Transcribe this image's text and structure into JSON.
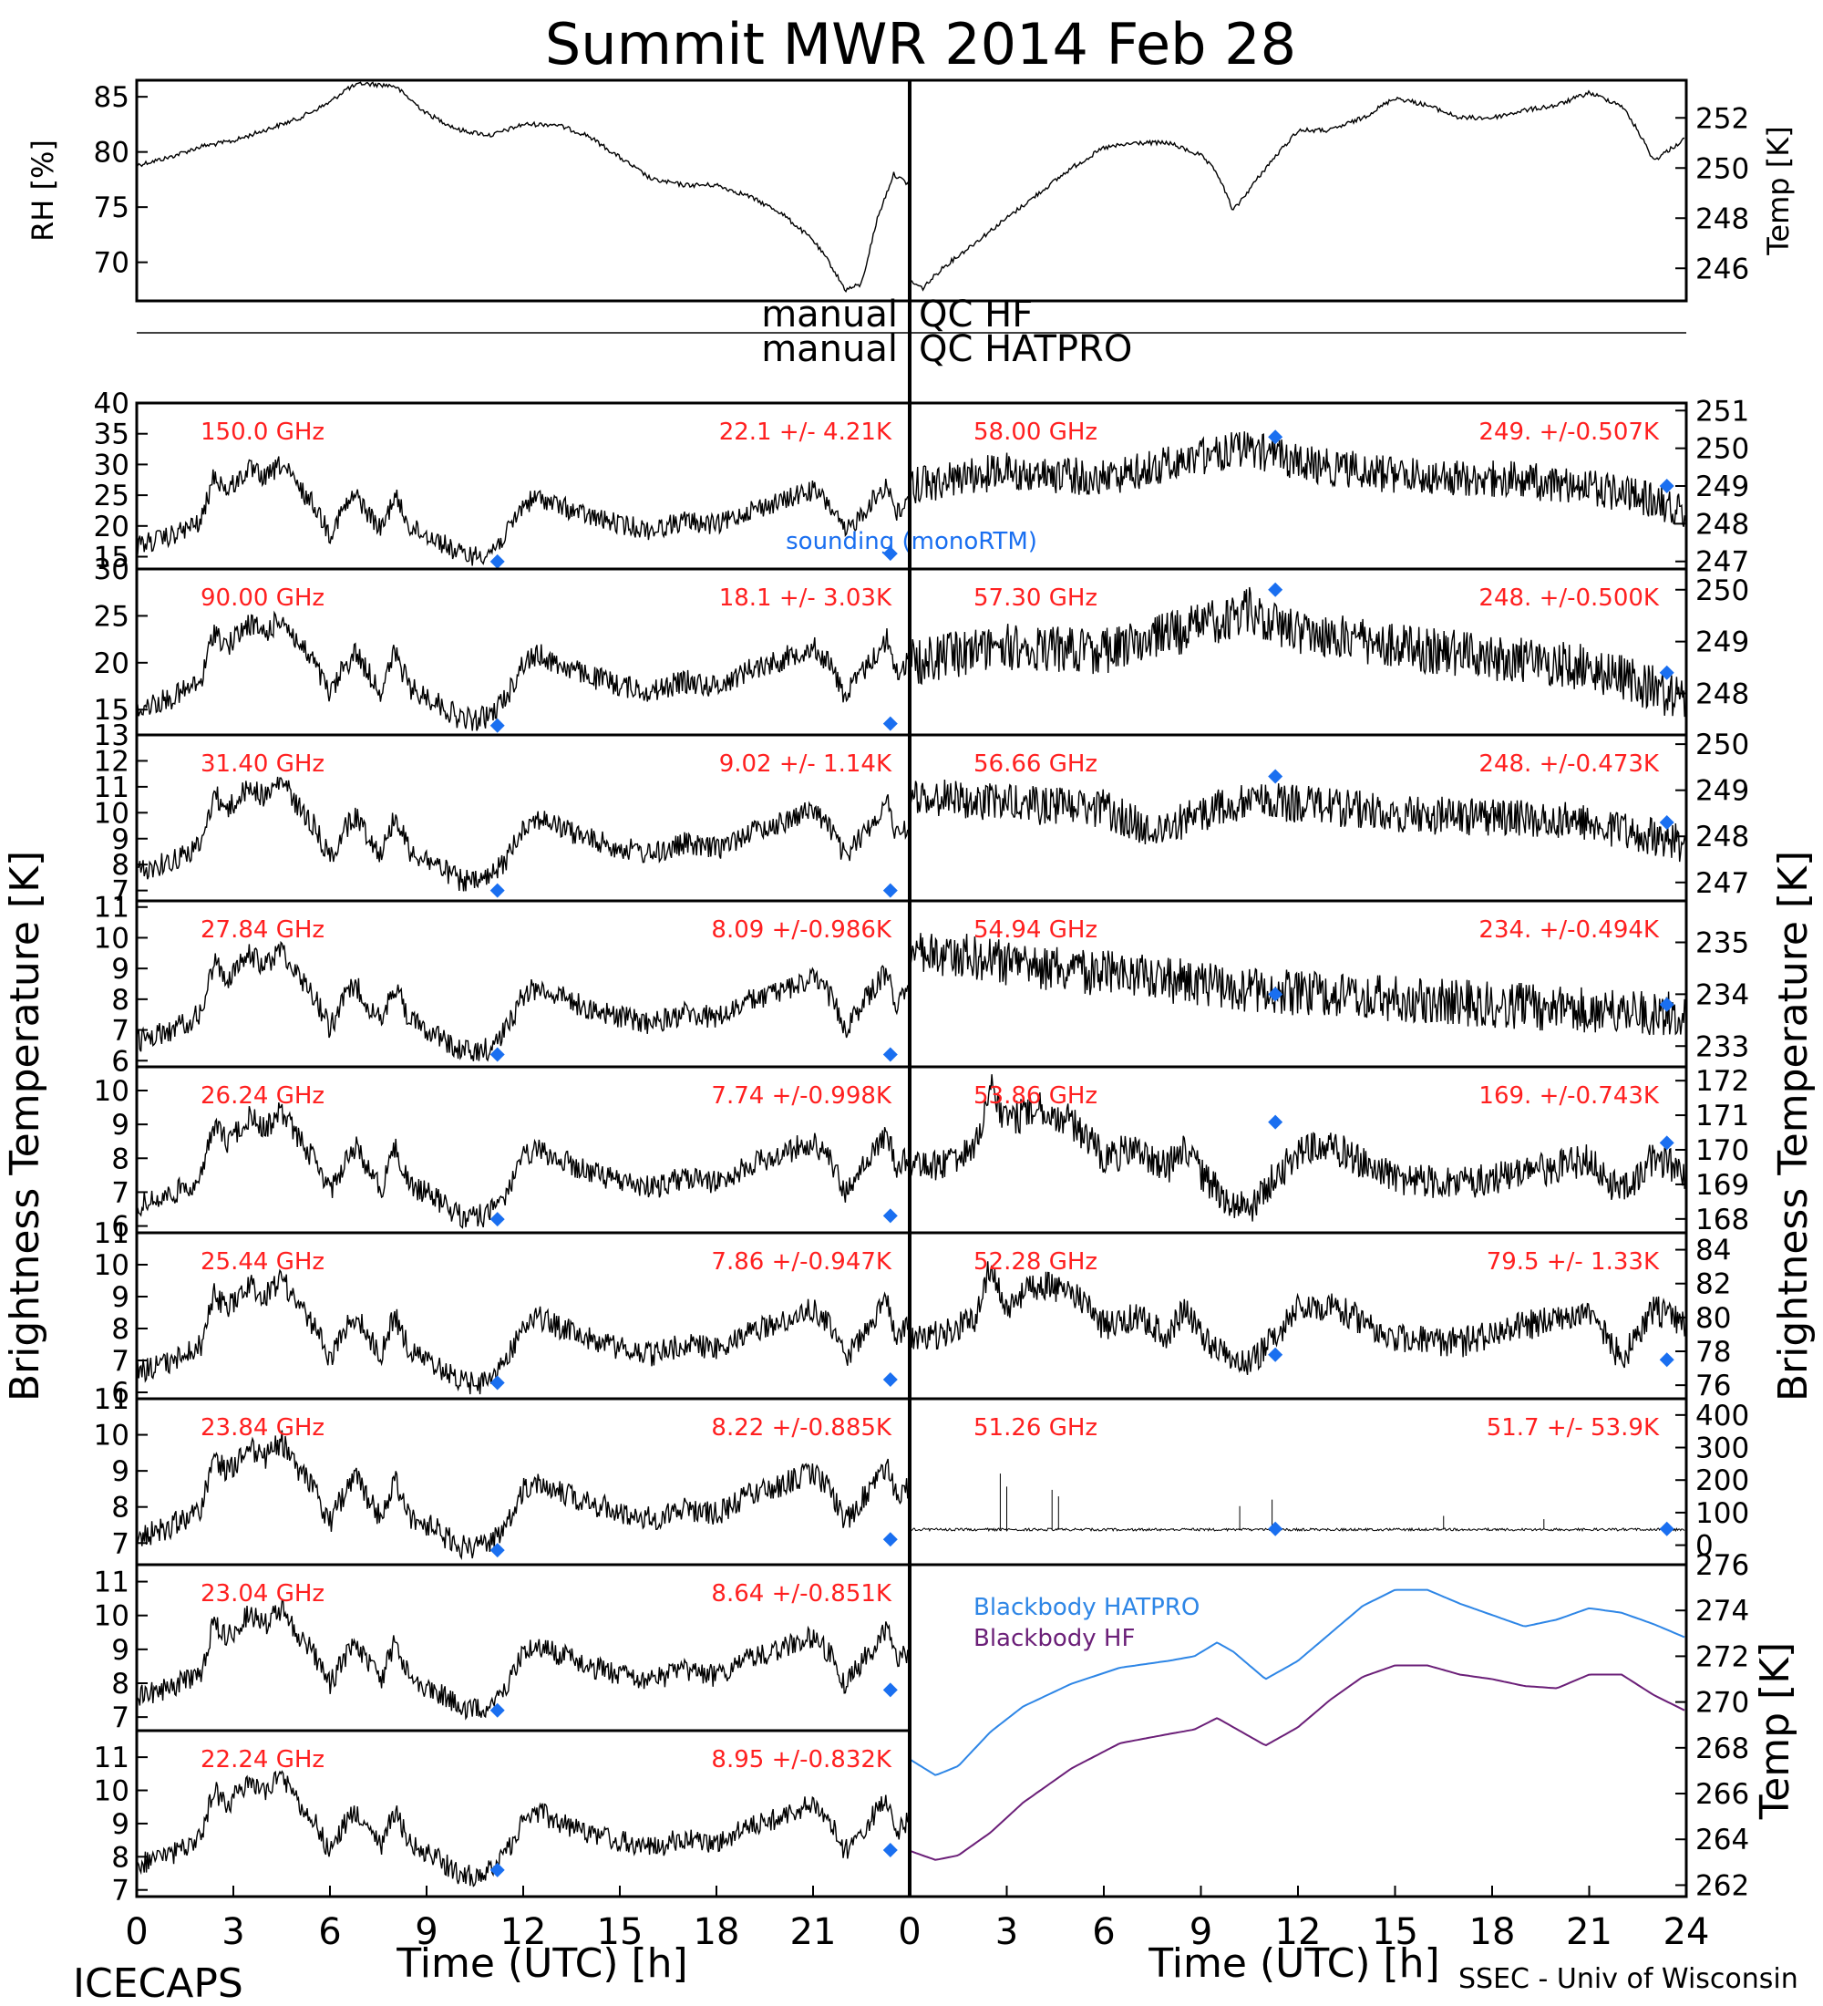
{
  "title": "Summit MWR 2014 Feb 28",
  "footer": {
    "left": "ICECAPS",
    "right": "SSEC - Univ of Wisconsin"
  },
  "qc": {
    "left_top": "manual",
    "right_top": "QC HF",
    "left_bottom": "manual",
    "right_bottom": "QC HATPRO"
  },
  "colors": {
    "channel_label": "#ff2020",
    "sounding": "#1a6ff0",
    "bb_hatpro": "#2e86e6",
    "bb_hf": "#6b1f78"
  },
  "chart_data": [
    {
      "id": "met",
      "type": "line",
      "xlabel": "",
      "xlim": [
        0,
        48
      ],
      "left_axis": {
        "label": "RH [%]",
        "ylim": [
          66.5,
          86.5
        ],
        "ticks": [
          70,
          75,
          80,
          85
        ]
      },
      "right_axis": {
        "label": "Temp [K]",
        "ylim": [
          244.7,
          253.5
        ],
        "ticks": [
          246,
          248,
          250,
          252
        ]
      },
      "series": [
        {
          "axis": "left",
          "x": [
            0,
            1,
            2,
            3,
            4,
            5,
            6,
            6.5,
            7,
            8,
            9,
            10,
            11,
            12,
            13,
            14,
            15,
            16,
            17,
            18,
            19,
            20,
            21,
            21.5,
            22,
            22.5,
            23,
            23.5,
            24
          ],
          "y": [
            78.8,
            79.5,
            80.5,
            81,
            82,
            83,
            84.5,
            85.7,
            86.2,
            86,
            83.5,
            82,
            81.5,
            82.5,
            82.5,
            81.5,
            79.5,
            77.5,
            77,
            77,
            76,
            74.5,
            72,
            70,
            67.5,
            68,
            74,
            78,
            77
          ]
        },
        {
          "axis": "right",
          "x": [
            24,
            24.4,
            25,
            26,
            27,
            28,
            29,
            30,
            31,
            32,
            33,
            33.5,
            34,
            35,
            36,
            37,
            38,
            39,
            40,
            41,
            42,
            43,
            44,
            45,
            46,
            46.5,
            47,
            48
          ],
          "y": [
            245.5,
            245.2,
            246,
            247,
            248,
            249,
            250,
            250.8,
            251,
            251,
            250.5,
            249.8,
            248.3,
            250,
            251.5,
            251.5,
            252,
            252.8,
            252.5,
            252,
            252,
            252.3,
            252.5,
            253,
            252.5,
            251.5,
            250.3,
            251.2
          ]
        }
      ]
    },
    {
      "id": "tb-left",
      "type": "line",
      "ylabel": "Brightness Temperature [K]",
      "xlabel": "Time (UTC) [h]",
      "xlim": [
        0,
        24
      ],
      "xticks": [
        0,
        3,
        6,
        9,
        12,
        15,
        18,
        21
      ],
      "shape_x": [
        0,
        1,
        2,
        2.4,
        2.8,
        3.5,
        4,
        4.5,
        5,
        5.5,
        6,
        6.4,
        6.8,
        7.2,
        7.6,
        8,
        8.5,
        8.8,
        9.2,
        10,
        10.5,
        11,
        11.5,
        12,
        12.5,
        13,
        14,
        15,
        16,
        17,
        18,
        18.5,
        19,
        20,
        20.5,
        21,
        21.5,
        22,
        22.5,
        23,
        23.3,
        23.6,
        24
      ],
      "shape_y": [
        0.15,
        0.22,
        0.35,
        0.75,
        0.62,
        0.8,
        0.72,
        0.85,
        0.65,
        0.5,
        0.25,
        0.45,
        0.58,
        0.42,
        0.28,
        0.58,
        0.3,
        0.26,
        0.22,
        0.08,
        0.06,
        0.1,
        0.25,
        0.5,
        0.56,
        0.5,
        0.4,
        0.33,
        0.28,
        0.36,
        0.32,
        0.38,
        0.45,
        0.52,
        0.58,
        0.62,
        0.5,
        0.25,
        0.42,
        0.58,
        0.68,
        0.42,
        0.52
      ],
      "panels": [
        {
          "channel": "150.0 GHz",
          "stats": "22.1 +/-  4.21K",
          "ylim": [
            13,
            40
          ],
          "ticks": [
            15,
            20,
            25,
            30,
            35,
            40
          ],
          "trace_range": [
            14,
            33
          ],
          "sounding": [
            [
              11.2,
              14.2
            ],
            [
              23.4,
              15.5
            ]
          ]
        },
        {
          "channel": "90.00 GHz",
          "stats": "18.1 +/-  3.03K",
          "ylim": [
            12.3,
            30
          ],
          "ticks": [
            15,
            20,
            25,
            30
          ],
          "trace_range": [
            13,
            27
          ],
          "sounding": [
            [
              11.2,
              13.3
            ],
            [
              23.4,
              13.5
            ]
          ]
        },
        {
          "channel": "31.40 GHz",
          "stats": "9.02 +/- 1.14K",
          "ylim": [
            6.6,
            13
          ],
          "ticks": [
            7,
            8,
            9,
            10,
            11,
            12,
            13
          ],
          "trace_range": [
            7,
            12
          ],
          "sounding": [
            [
              11.2,
              7
            ],
            [
              23.4,
              7
            ]
          ]
        },
        {
          "channel": "27.84 GHz",
          "stats": "8.09 +/-0.986K",
          "ylim": [
            5.8,
            11.2
          ],
          "ticks": [
            6,
            7,
            8,
            9,
            10,
            11
          ],
          "trace_range": [
            6,
            10.3
          ],
          "sounding": [
            [
              11.2,
              6.2
            ],
            [
              23.4,
              6.2
            ]
          ]
        },
        {
          "channel": "26.24 GHz",
          "stats": "7.74 +/-0.998K",
          "ylim": [
            5.8,
            10.7
          ],
          "ticks": [
            6,
            7,
            8,
            9,
            10
          ],
          "trace_range": [
            6,
            10
          ],
          "sounding": [
            [
              11.2,
              6.2
            ],
            [
              23.4,
              6.3
            ]
          ]
        },
        {
          "channel": "25.44 GHz",
          "stats": "7.86 +/-0.947K",
          "ylim": [
            5.8,
            11
          ],
          "ticks": [
            6,
            7,
            8,
            9,
            10,
            11
          ],
          "trace_range": [
            6,
            10.2
          ],
          "sounding": [
            [
              11.2,
              6.3
            ],
            [
              23.4,
              6.4
            ]
          ]
        },
        {
          "channel": "23.84 GHz",
          "stats": "8.22 +/-0.885K",
          "ylim": [
            6.4,
            11
          ],
          "ticks": [
            7,
            8,
            9,
            10,
            11
          ],
          "trace_range": [
            6.6,
            10.4
          ],
          "sounding": [
            [
              11.2,
              6.8
            ],
            [
              23.4,
              7.1
            ]
          ]
        },
        {
          "channel": "23.04 GHz",
          "stats": "8.64 +/-0.851K",
          "ylim": [
            6.6,
            11.5
          ],
          "ticks": [
            7,
            8,
            9,
            10,
            11
          ],
          "trace_range": [
            7,
            10.8
          ],
          "sounding": [
            [
              11.2,
              7.2
            ],
            [
              23.4,
              7.8
            ]
          ]
        },
        {
          "channel": "22.24 GHz",
          "stats": "8.95 +/-0.832K",
          "ylim": [
            6.8,
            11.8
          ],
          "ticks": [
            7,
            8,
            9,
            10,
            11
          ],
          "trace_range": [
            7.2,
            11
          ],
          "sounding": [
            [
              11.2,
              7.6
            ],
            [
              23.4,
              8.2
            ]
          ]
        }
      ]
    },
    {
      "id": "tb-right",
      "type": "line",
      "ylabel": "Brightness Temperature [K]",
      "xlabel": "Time (UTC) [h]",
      "xlim": [
        0,
        24
      ],
      "xticks": [
        0,
        3,
        6,
        9,
        12,
        15,
        18,
        21,
        24
      ],
      "sounding_legend": "sounding (monoRTM)",
      "panels": [
        {
          "channel": "58.00 GHz",
          "stats": "249. +/-0.507K",
          "ylim": [
            246.8,
            251.2
          ],
          "ticks": [
            247,
            248,
            249,
            250,
            251
          ],
          "x": [
            0,
            3,
            6,
            9,
            10.5,
            12,
            15,
            18,
            21,
            23,
            24
          ],
          "y": [
            249,
            249.4,
            249.2,
            249.8,
            250,
            249.6,
            249.3,
            249.2,
            249,
            248.6,
            248.4
          ],
          "noise": 0.5,
          "sounding": [
            [
              11.3,
              250.3
            ],
            [
              23.4,
              249
            ]
          ]
        },
        {
          "channel": "57.30 GHz",
          "stats": "248. +/-0.500K",
          "ylim": [
            247.2,
            250.4
          ],
          "ticks": [
            248,
            249,
            250
          ],
          "x": [
            0,
            3,
            6,
            9,
            10.5,
            12,
            15,
            18,
            21,
            23,
            24
          ],
          "y": [
            248.6,
            248.9,
            248.8,
            249.3,
            249.6,
            249.2,
            248.9,
            248.7,
            248.5,
            248.1,
            247.8
          ],
          "noise": 0.45,
          "sounding": [
            [
              11.3,
              250
            ],
            [
              23.4,
              248.4
            ]
          ]
        },
        {
          "channel": "56.66 GHz",
          "stats": "248. +/-0.473K",
          "ylim": [
            246.6,
            250.2
          ],
          "ticks": [
            247,
            248,
            249,
            250
          ],
          "x": [
            0,
            3,
            6,
            7.5,
            9,
            10.5,
            12,
            15,
            18,
            21,
            23,
            24
          ],
          "y": [
            248.9,
            248.7,
            248.6,
            248.1,
            248.5,
            248.8,
            248.7,
            248.5,
            248.4,
            248.3,
            248,
            247.8
          ],
          "noise": 0.42,
          "sounding": [
            [
              11.3,
              249.3
            ],
            [
              23.4,
              248.3
            ]
          ]
        },
        {
          "channel": "54.94 GHz",
          "stats": "234. +/-0.494K",
          "ylim": [
            232.6,
            235.8
          ],
          "ticks": [
            233,
            234,
            235
          ],
          "x": [
            0,
            3,
            6,
            9,
            12,
            15,
            18,
            21,
            24
          ],
          "y": [
            234.9,
            234.6,
            234.4,
            234.2,
            234,
            233.9,
            233.8,
            233.7,
            233.6
          ],
          "noise": 0.45,
          "sounding": [
            [
              11.3,
              234
            ],
            [
              23.4,
              233.8
            ]
          ]
        },
        {
          "channel": "53.86 GHz",
          "stats": "169. +/-0.743K",
          "ylim": [
            167.6,
            172.4
          ],
          "ticks": [
            168,
            169,
            170,
            171,
            172
          ],
          "x": [
            0,
            1,
            2,
            2.5,
            3,
            4,
            5,
            6,
            7,
            8,
            8.5,
            9,
            10,
            10.5,
            11,
            12,
            13,
            15,
            17,
            19,
            21,
            22,
            23,
            24
          ],
          "y": [
            169.4,
            169.6,
            169.9,
            171.8,
            170.8,
            171.2,
            170.8,
            169.8,
            170,
            169.5,
            170.2,
            169.3,
            168.4,
            168.3,
            168.9,
            169.9,
            170.1,
            169.2,
            169,
            169.3,
            169.7,
            168.7,
            169.8,
            169.3
          ],
          "noise": 0.5,
          "sounding": [
            [
              11.3,
              170.8
            ],
            [
              23.4,
              170.2
            ]
          ]
        },
        {
          "channel": "52.28 GHz",
          "stats": "79.5 +/- 1.33K",
          "ylim": [
            75.2,
            85
          ],
          "ticks": [
            76,
            78,
            80,
            82,
            84
          ],
          "x": [
            0,
            1,
            2,
            2.5,
            3,
            4,
            5,
            6,
            7,
            8,
            8.5,
            9,
            10,
            10.5,
            11,
            12,
            13,
            15,
            17,
            19,
            21,
            22,
            23,
            24
          ],
          "y": [
            78.5,
            79,
            79.8,
            83,
            80.5,
            82,
            81.5,
            79.5,
            80,
            79,
            80.5,
            79,
            77.3,
            77.2,
            78.2,
            80.5,
            80.8,
            78.8,
            78.5,
            79.5,
            80.5,
            77.5,
            80.5,
            79.5
          ],
          "noise": 0.9,
          "sounding": [
            [
              11.3,
              77.8
            ],
            [
              23.4,
              77.5
            ]
          ]
        },
        {
          "channel": "51.26 GHz",
          "stats": "51.7 +/- 53.9K",
          "ylim": [
            -60,
            450
          ],
          "ticks": [
            0,
            100,
            200,
            300,
            400
          ],
          "x": [
            0,
            24
          ],
          "y": [
            48,
            48
          ],
          "noise": 4,
          "sounding": [
            [
              11.3,
              50
            ],
            [
              23.4,
              50
            ]
          ]
        }
      ]
    },
    {
      "id": "blackbody",
      "type": "line",
      "ylabel": "Temp [K]",
      "xlim": [
        0,
        24
      ],
      "ylim": [
        261.5,
        276
      ],
      "ticks": [
        262,
        264,
        266,
        268,
        270,
        272,
        274,
        276
      ],
      "series": [
        {
          "name": "Blackbody HATPRO",
          "x": [
            0,
            0.8,
            1.5,
            2.5,
            3.5,
            5,
            6.5,
            8,
            8.8,
            9.5,
            10,
            11,
            12,
            13,
            14,
            15,
            16,
            17,
            18,
            19,
            20,
            21,
            22,
            23,
            24
          ],
          "y": [
            267.5,
            266.8,
            267.2,
            268.7,
            269.8,
            270.8,
            271.5,
            271.8,
            272,
            272.6,
            272.2,
            271,
            271.8,
            273,
            274.2,
            274.9,
            274.9,
            274.3,
            273.8,
            273.3,
            273.6,
            274.1,
            273.9,
            273.4,
            272.8
          ]
        },
        {
          "name": "Blackbody HF",
          "x": [
            0,
            0.8,
            1.5,
            2.5,
            3.5,
            5,
            6.5,
            8,
            8.8,
            9.5,
            10,
            11,
            12,
            13,
            14,
            15,
            16,
            17,
            18,
            19,
            20,
            21,
            22,
            23,
            24
          ],
          "y": [
            263.5,
            263.1,
            263.3,
            264.3,
            265.6,
            267.1,
            268.2,
            268.6,
            268.8,
            269.3,
            268.9,
            268.1,
            268.9,
            270.1,
            271.1,
            271.6,
            271.6,
            271.2,
            271,
            270.7,
            270.6,
            271.2,
            271.2,
            270.3,
            269.6
          ]
        }
      ]
    }
  ]
}
